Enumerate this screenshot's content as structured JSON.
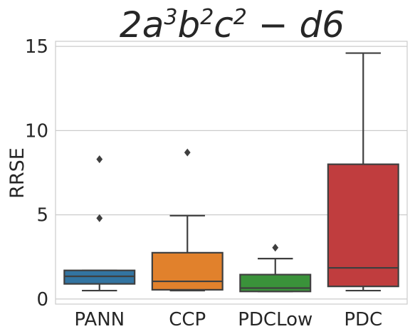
{
  "chart_data": {
    "type": "box",
    "title": {
      "parts": [
        {
          "text": "2a",
          "sup": false
        },
        {
          "text": "3",
          "sup": true
        },
        {
          "text": "b",
          "sup": false
        },
        {
          "text": "2",
          "sup": true
        },
        {
          "text": "c",
          "sup": false
        },
        {
          "text": "2",
          "sup": true
        },
        {
          "text": " − d6",
          "sup": false
        }
      ]
    },
    "xlabel": "",
    "ylabel": "RRSE",
    "ylim": [
      -0.3,
      15.3
    ],
    "yticks": [
      0,
      5,
      10,
      15
    ],
    "grid": true,
    "categories": [
      "PANN",
      "CCP",
      "PDCLow",
      "PDC"
    ],
    "colors": [
      "#3274a1",
      "#e1812c",
      "#3a923a",
      "#c03d3e"
    ],
    "boxes": [
      {
        "name": "PANN",
        "whisker_low": 0.5,
        "q1": 0.9,
        "median": 1.35,
        "q3": 1.7,
        "whisker_high": 1.7,
        "outliers": [
          4.8,
          8.3
        ]
      },
      {
        "name": "CCP",
        "whisker_low": 0.5,
        "q1": 0.55,
        "median": 1.05,
        "q3": 2.75,
        "whisker_high": 4.95,
        "outliers": [
          8.7
        ]
      },
      {
        "name": "PDCLow",
        "whisker_low": 0.45,
        "q1": 0.45,
        "median": 0.65,
        "q3": 1.45,
        "whisker_high": 2.4,
        "outliers": [
          3.05
        ]
      },
      {
        "name": "PDC",
        "whisker_low": 0.5,
        "q1": 0.75,
        "median": 1.85,
        "q3": 8.0,
        "whisker_high": 14.6,
        "outliers": []
      }
    ]
  }
}
